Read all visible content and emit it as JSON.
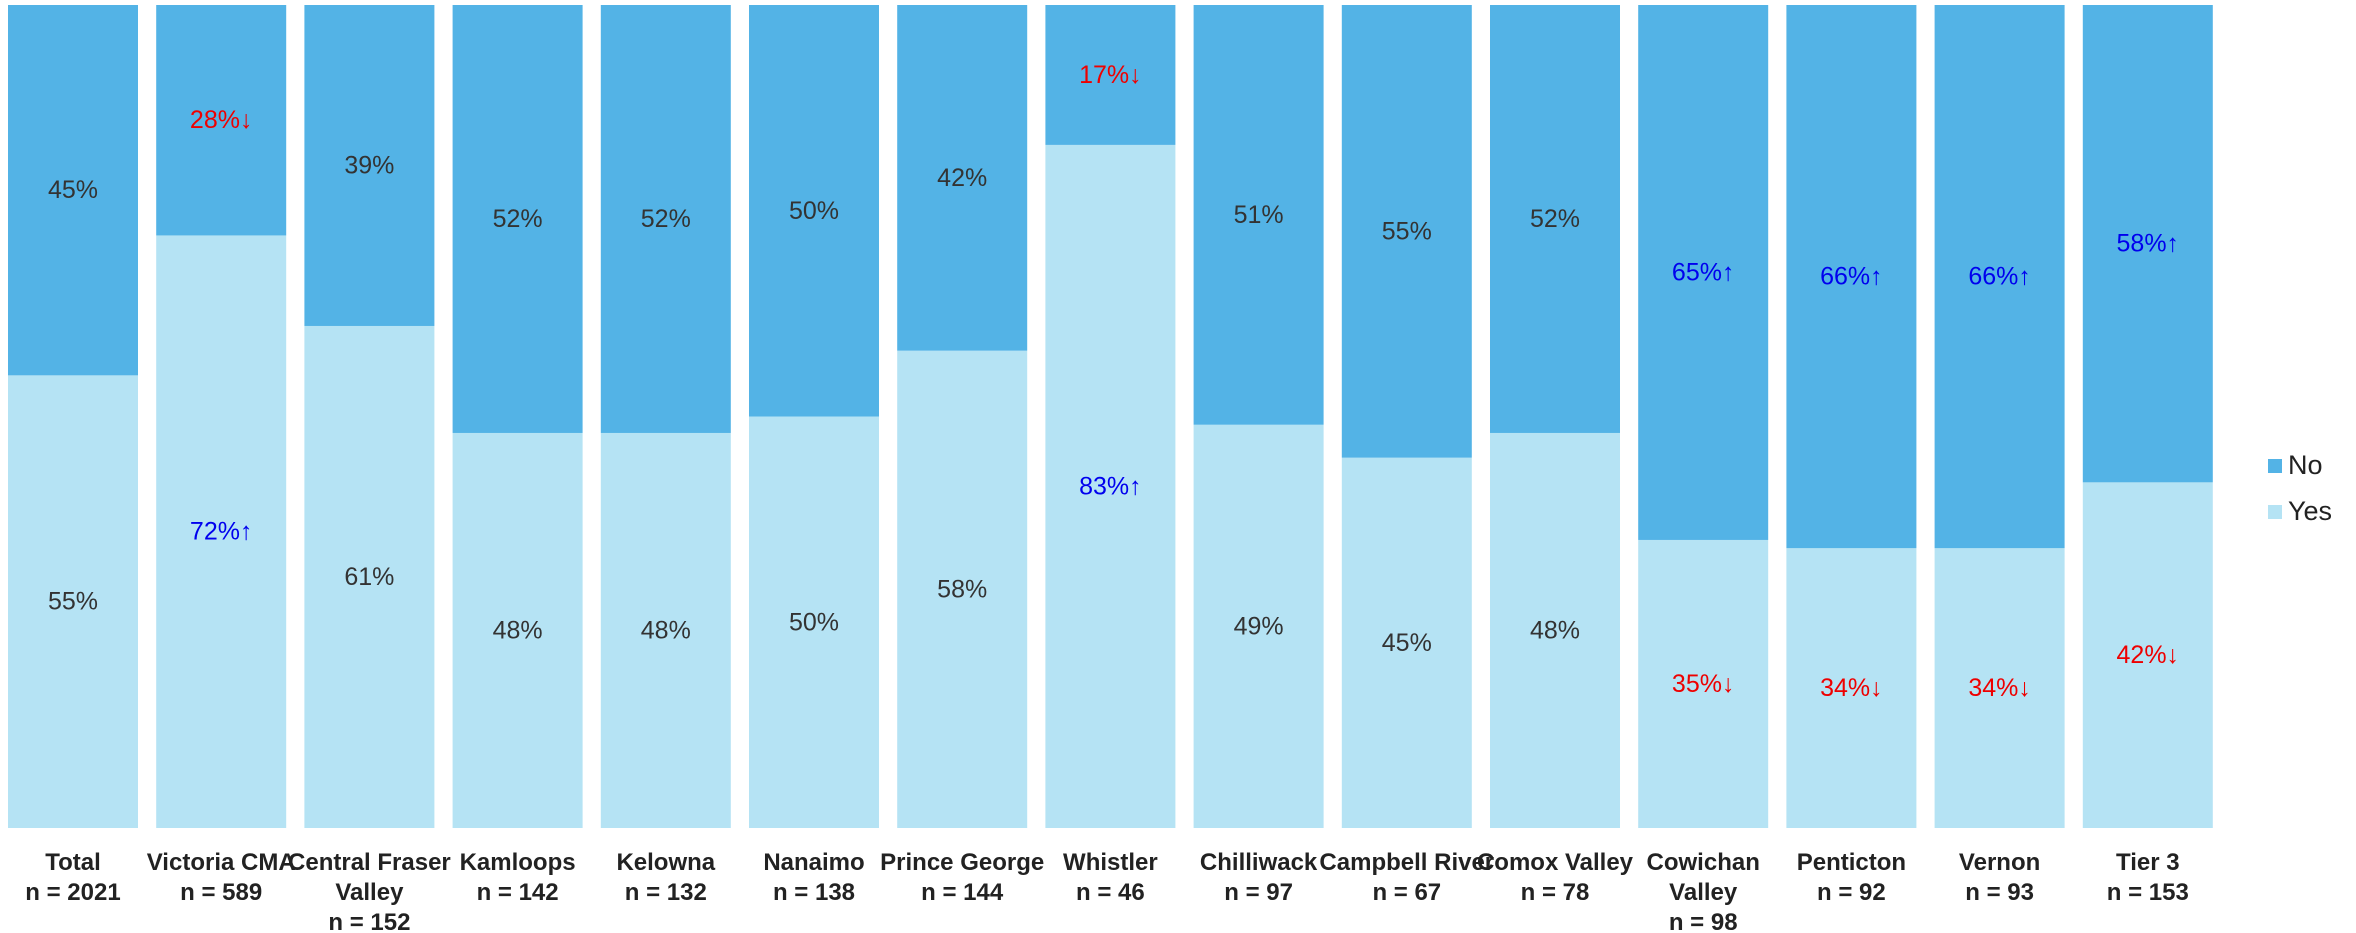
{
  "chart_data": {
    "type": "bar",
    "stacked": true,
    "orientation": "vertical",
    "ylim": [
      0,
      100
    ],
    "grid": false,
    "legend_position": "right",
    "categories": [
      [
        "Total",
        "n = 2021"
      ],
      [
        "Victoria CMA",
        "n = 589"
      ],
      [
        "Central Fraser",
        "Valley",
        "n = 152"
      ],
      [
        "Kamloops",
        "n = 142"
      ],
      [
        "Kelowna",
        "n = 132"
      ],
      [
        "Nanaimo",
        "n = 138"
      ],
      [
        "Prince George",
        "n = 144"
      ],
      [
        "Whistler",
        "n = 46"
      ],
      [
        "Chilliwack",
        "n = 97"
      ],
      [
        "Campbell River",
        "n = 67"
      ],
      [
        "Comox Valley",
        "n = 78"
      ],
      [
        "Cowichan",
        "Valley",
        "n = 98"
      ],
      [
        "Penticton",
        "n = 92"
      ],
      [
        "Vernon",
        "n = 93"
      ],
      [
        "Tier 3",
        "n = 153"
      ]
    ],
    "series": [
      {
        "name": "Yes",
        "color": "#b5e3f4",
        "values": [
          55,
          72,
          61,
          48,
          48,
          50,
          58,
          83,
          49,
          45,
          48,
          35,
          34,
          34,
          42
        ],
        "labels": [
          "55%",
          "72%↑",
          "61%",
          "48%",
          "48%",
          "50%",
          "58%",
          "83%↑",
          "49%",
          "45%",
          "48%",
          "35%↓",
          "34%↓",
          "34%↓",
          "42%↓"
        ],
        "label_colors": [
          "#333333",
          "#0000ee",
          "#333333",
          "#333333",
          "#333333",
          "#333333",
          "#333333",
          "#0000ee",
          "#333333",
          "#333333",
          "#333333",
          "#ee0000",
          "#ee0000",
          "#ee0000",
          "#ee0000"
        ]
      },
      {
        "name": "No",
        "color": "#53b3e6",
        "values": [
          45,
          28,
          39,
          52,
          52,
          50,
          42,
          17,
          51,
          55,
          52,
          65,
          66,
          66,
          58
        ],
        "labels": [
          "45%",
          "28%↓",
          "39%",
          "52%",
          "52%",
          "50%",
          "42%",
          "17%↓",
          "51%",
          "55%",
          "52%",
          "65%↑",
          "66%↑",
          "66%↑",
          "58%↑"
        ],
        "label_colors": [
          "#333333",
          "#ee0000",
          "#333333",
          "#333333",
          "#333333",
          "#333333",
          "#333333",
          "#ee0000",
          "#333333",
          "#333333",
          "#333333",
          "#0000ee",
          "#0000ee",
          "#0000ee",
          "#0000ee"
        ]
      }
    ],
    "legend": [
      "No",
      "Yes"
    ]
  }
}
